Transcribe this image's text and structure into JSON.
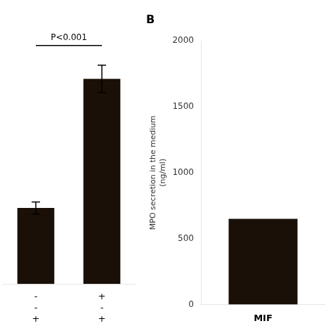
{
  "chart_data": [
    {
      "type": "bar",
      "categories": [
        [
          "-",
          "-",
          "+"
        ],
        [
          "+",
          "-",
          "+"
        ]
      ],
      "values": [
        500,
        1350
      ],
      "errors": [
        40,
        90
      ],
      "color": "#1a1008",
      "ylim": [
        0,
        1800
      ],
      "tick_labels": "x",
      "grid": false,
      "annotations": [
        "P<0.001"
      ]
    },
    {
      "type": "bar",
      "title": "B",
      "categories": [
        null
      ],
      "values": [
        650
      ],
      "color": "#1a1008",
      "ylim": [
        0,
        2000
      ],
      "yticks": [
        0,
        500,
        1000,
        1500,
        2000
      ],
      "ylabel": "MPO secretion in the medium\n(ng/ml)",
      "xlabel": "MIF",
      "tick_labels": "y",
      "grid": false
    }
  ]
}
